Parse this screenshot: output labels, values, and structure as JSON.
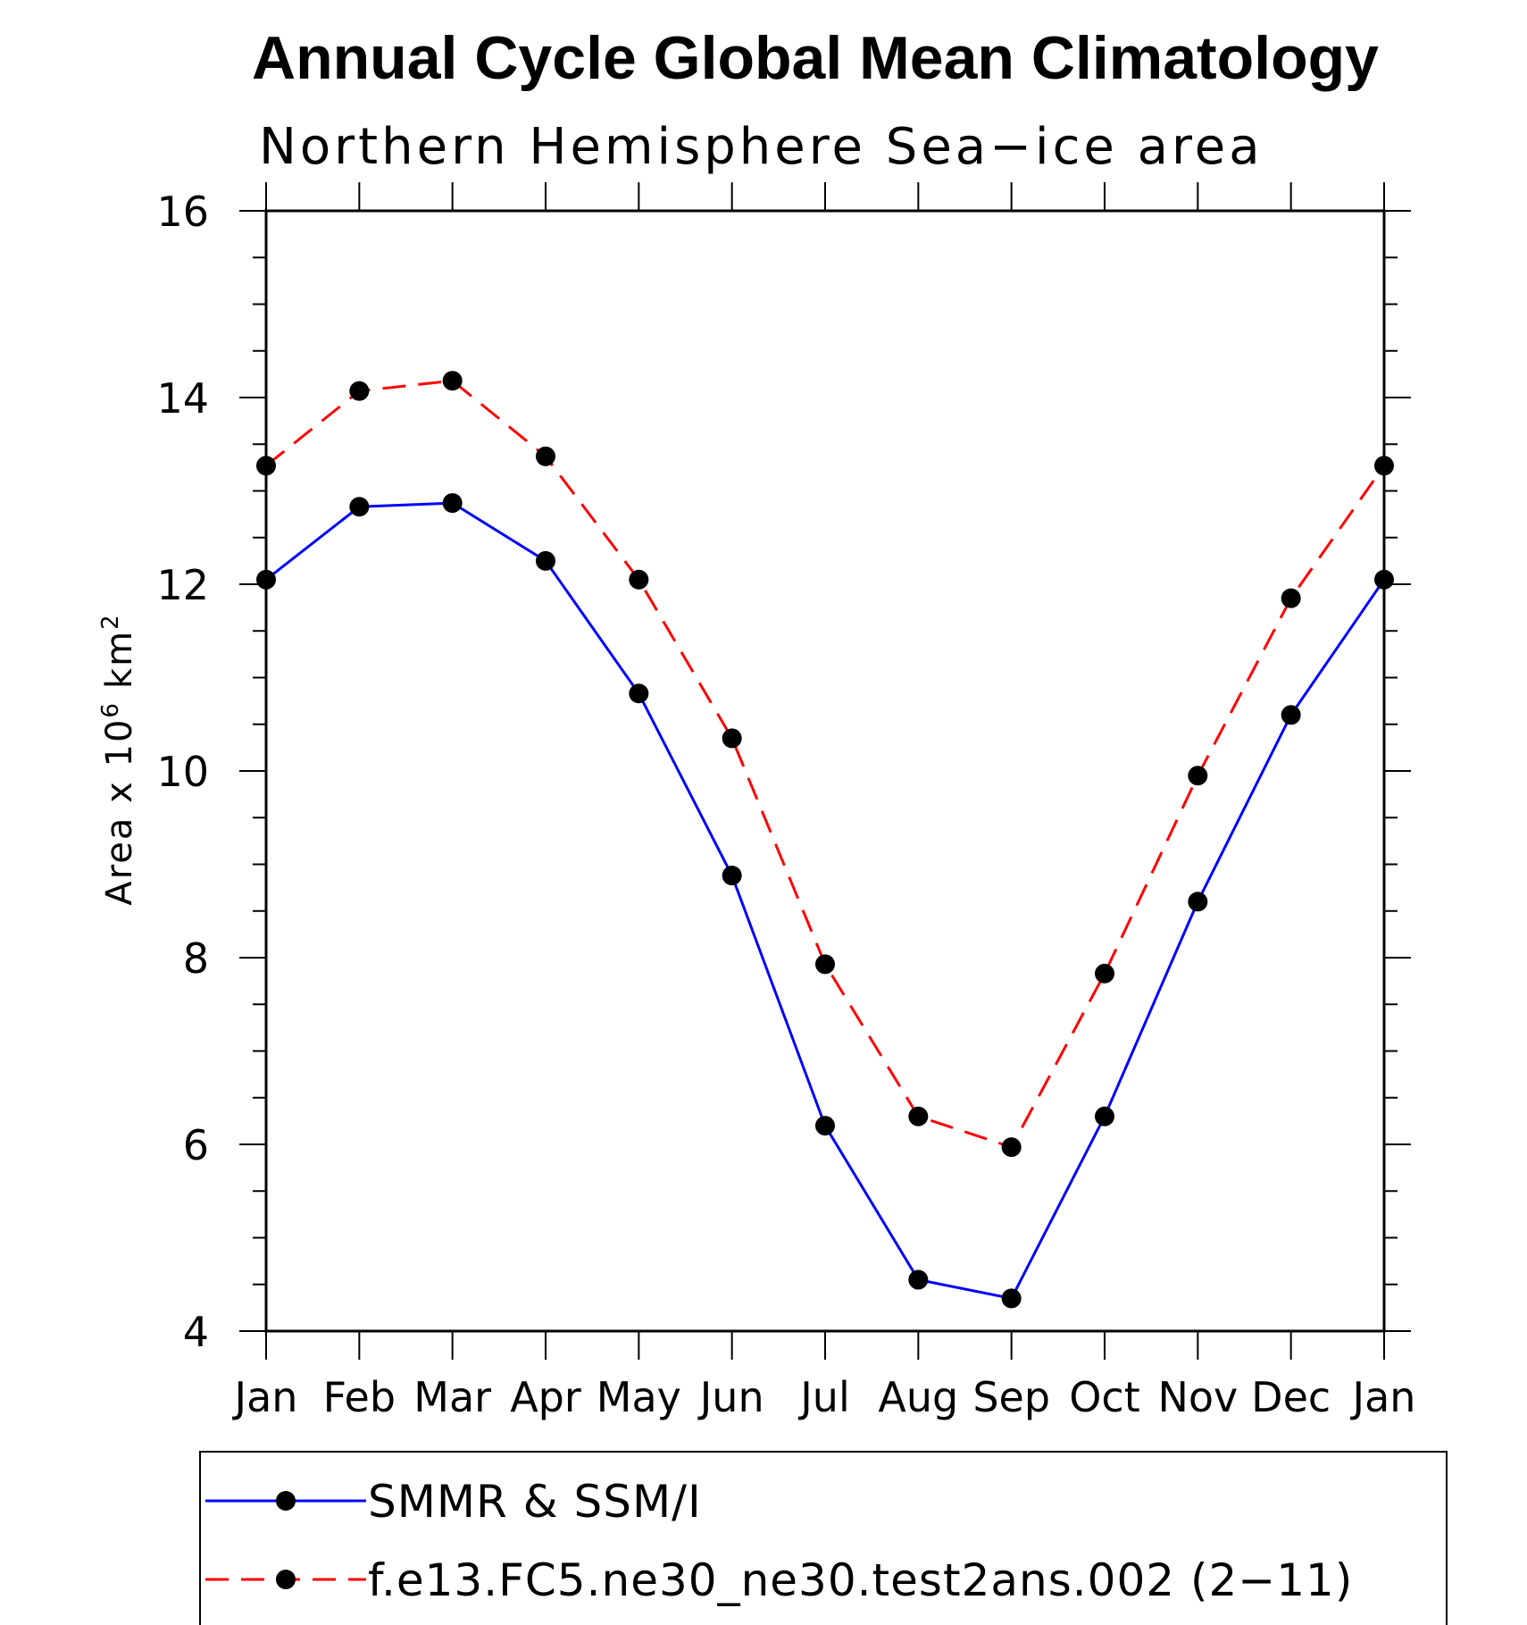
{
  "chart_data": {
    "type": "line",
    "title": "Annual Cycle Global Mean Climatology",
    "subtitle": "Northern Hemisphere Sea−ice area",
    "ylabel": "Area x 10",
    "ylabel_superscript": "6",
    "ylabel_unit": "km",
    "ylabel_unit_superscript": "2",
    "categories": [
      "Jan",
      "Feb",
      "Mar",
      "Apr",
      "May",
      "Jun",
      "Jul",
      "Aug",
      "Sep",
      "Oct",
      "Nov",
      "Dec",
      "Jan"
    ],
    "ylim": [
      4,
      16
    ],
    "yticks": [
      "4",
      "6",
      "8",
      "10",
      "12",
      "14",
      "16"
    ],
    "grid": false,
    "legend_position": "bottom",
    "series": [
      {
        "name": "SMMR & SSM/I",
        "color": "#0000ff",
        "line_style": "solid",
        "marker": "filled-circle",
        "values": [
          12.05,
          12.83,
          12.87,
          12.25,
          10.83,
          8.88,
          6.2,
          4.55,
          4.35,
          6.3,
          8.6,
          10.6,
          12.05
        ]
      },
      {
        "name": "f.e13.FC5.ne30_ne30.test2ans.002 (2−11)",
        "color": "#ff0000",
        "line_style": "dashed",
        "marker": "filled-circle",
        "values": [
          13.27,
          14.07,
          14.18,
          13.37,
          12.05,
          10.35,
          7.93,
          6.3,
          5.97,
          7.83,
          9.95,
          11.85,
          13.27
        ]
      }
    ]
  }
}
